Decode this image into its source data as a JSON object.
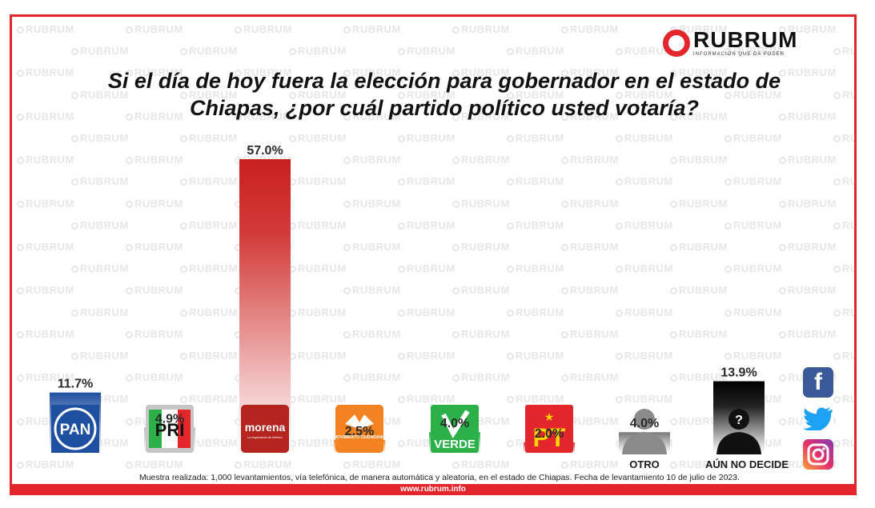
{
  "brand": {
    "name": "RUBRUM",
    "tagline": "INFORMACIÓN QUE DA PODER",
    "watermark": "RUBRUM",
    "red": "#e3262b"
  },
  "title_line1": "Si el día de hoy fuera la elección para gobernador en el estado de",
  "title_line2": "Chiapas, ¿por cuál  partido político usted votaría?",
  "chart_data": {
    "type": "bar",
    "categories": [
      "PAN",
      "PRI",
      "morena",
      "MOVIMIENTO CIUDADANO",
      "VERDE",
      "PT",
      "OTRO",
      "AÚN NO DECIDE"
    ],
    "values": [
      11.7,
      4.9,
      57.0,
      2.5,
      4.0,
      2.0,
      4.0,
      13.9
    ],
    "value_labels": [
      "11.7%",
      "4.9%",
      "57.0%",
      "2.5%",
      "4.0%",
      "2.0%",
      "4.0%",
      "13.9%"
    ],
    "ylim": [
      0,
      57.0
    ],
    "xlabel": "",
    "ylabel": "",
    "grid": false
  },
  "parties": [
    {
      "id": "pan",
      "logo_text": "PAN",
      "bar_color": "#1f4fa0",
      "logo_bg": "#1f4fa0",
      "label": ""
    },
    {
      "id": "pri",
      "logo_text": "PRI",
      "bar_color": "#c6c6c6",
      "logo_bg": "#c6c6c6",
      "label": ""
    },
    {
      "id": "morena",
      "logo_text": "morena",
      "logo_subtext": "La esperanza de México",
      "bar_color": "#c9201f",
      "logo_bg": "#b5241f",
      "label": ""
    },
    {
      "id": "mc",
      "logo_text": "MOVIMIENTO CIUDADANO",
      "bar_color": "#f58220",
      "logo_bg": "#f58220",
      "label": ""
    },
    {
      "id": "verde",
      "logo_text": "VERDE",
      "bar_color": "#2bb04a",
      "logo_bg": "#2bb04a",
      "label": ""
    },
    {
      "id": "pt",
      "logo_text": "PT",
      "bar_color": "#e3262b",
      "logo_bg": "#e3262b",
      "label": ""
    },
    {
      "id": "otro",
      "logo_text": "",
      "bar_color": "#777777",
      "logo_bg": "#ffffff",
      "label": "OTRO"
    },
    {
      "id": "aun",
      "logo_text": "?",
      "bar_color": "#111111",
      "logo_bg": "#ffffff",
      "label": "AÚN NO DECIDE"
    }
  ],
  "footer": {
    "note": "Muestra realizada: 1,000 levantamientos, vía telefónica, de manera automática y aleatoria, en el estado de Chiapas. Fecha de levantamiento 10 de julio de 2023.",
    "url": "www.rubrum.info"
  },
  "social": [
    {
      "name": "facebook-icon",
      "glyph": "f"
    },
    {
      "name": "twitter-icon",
      "glyph": ""
    },
    {
      "name": "instagram-icon",
      "glyph": ""
    }
  ]
}
